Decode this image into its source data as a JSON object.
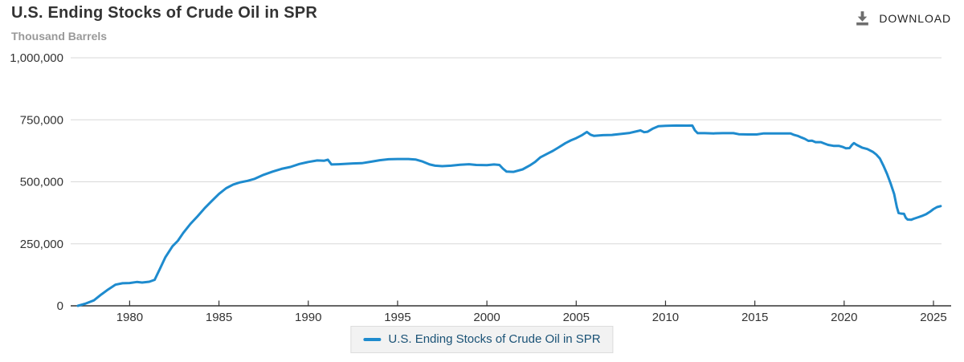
{
  "header": {
    "title": "U.S. Ending Stocks of Crude Oil in SPR",
    "subtitle": "Thousand Barrels",
    "download_label": "DOWNLOAD"
  },
  "legend": {
    "label": "U.S. Ending Stocks of Crude Oil in SPR"
  },
  "colors": {
    "series": "#1e8bce",
    "legend_text": "#1a5276",
    "legend_bg": "#f2f2f2",
    "legend_border": "#dddddd",
    "grid": "#d8d8d8",
    "axis": "#333333",
    "tick_label": "#333333",
    "title": "#333333",
    "subtitle": "#999999",
    "download_icon": "#6e6e6e"
  },
  "chart_data": {
    "type": "line",
    "title": "U.S. Ending Stocks of Crude Oil in SPR",
    "xlabel": "",
    "ylabel": "Thousand Barrels",
    "x_range": [
      1976.7,
      2025.45
    ],
    "y_range": [
      0,
      1000000
    ],
    "x_ticks": [
      1980,
      1985,
      1990,
      1995,
      2000,
      2005,
      2010,
      2015,
      2020,
      2025
    ],
    "y_ticks": [
      {
        "value": 0,
        "label": "0"
      },
      {
        "value": 250000,
        "label": "250,000"
      },
      {
        "value": 500000,
        "label": "500,000"
      },
      {
        "value": 750000,
        "label": "750,000"
      },
      {
        "value": 1000000,
        "label": "1,000,000"
      }
    ],
    "grid": "horizontal",
    "legend_position": "bottom",
    "series": [
      {
        "name": "U.S. Ending Stocks of Crude Oil in SPR",
        "color": "#1e8bce",
        "points": [
          [
            1977.1,
            0
          ],
          [
            1977.5,
            8000
          ],
          [
            1978.0,
            22000
          ],
          [
            1978.4,
            45000
          ],
          [
            1978.8,
            66000
          ],
          [
            1979.2,
            85000
          ],
          [
            1979.6,
            91000
          ],
          [
            1980.0,
            92000
          ],
          [
            1980.4,
            96000
          ],
          [
            1980.7,
            94000
          ],
          [
            1981.1,
            97000
          ],
          [
            1981.4,
            105000
          ],
          [
            1981.7,
            150000
          ],
          [
            1982.0,
            196000
          ],
          [
            1982.4,
            240000
          ],
          [
            1982.7,
            262000
          ],
          [
            1983.0,
            294000
          ],
          [
            1983.4,
            330000
          ],
          [
            1983.8,
            361000
          ],
          [
            1984.2,
            394000
          ],
          [
            1984.6,
            423000
          ],
          [
            1985.0,
            451000
          ],
          [
            1985.4,
            474000
          ],
          [
            1985.8,
            489000
          ],
          [
            1986.2,
            498000
          ],
          [
            1986.6,
            504000
          ],
          [
            1987.0,
            512000
          ],
          [
            1987.5,
            528000
          ],
          [
            1988.0,
            541000
          ],
          [
            1988.5,
            552000
          ],
          [
            1989.0,
            560000
          ],
          [
            1989.5,
            572000
          ],
          [
            1990.0,
            580000
          ],
          [
            1990.5,
            586000
          ],
          [
            1990.9,
            585000
          ],
          [
            1991.1,
            589000
          ],
          [
            1991.3,
            570000
          ],
          [
            1991.7,
            571000
          ],
          [
            1992.0,
            572000
          ],
          [
            1992.5,
            574000
          ],
          [
            1993.0,
            575000
          ],
          [
            1993.5,
            581000
          ],
          [
            1994.0,
            587000
          ],
          [
            1994.5,
            591000
          ],
          [
            1995.0,
            592000
          ],
          [
            1995.6,
            592000
          ],
          [
            1996.0,
            590000
          ],
          [
            1996.4,
            582000
          ],
          [
            1996.8,
            570000
          ],
          [
            1997.1,
            565000
          ],
          [
            1997.5,
            563000
          ],
          [
            1998.0,
            565000
          ],
          [
            1998.5,
            569000
          ],
          [
            1999.0,
            571000
          ],
          [
            1999.4,
            568000
          ],
          [
            2000.0,
            567000
          ],
          [
            2000.4,
            570000
          ],
          [
            2000.7,
            568000
          ],
          [
            2000.9,
            553000
          ],
          [
            2001.1,
            541000
          ],
          [
            2001.5,
            540000
          ],
          [
            2002.0,
            550000
          ],
          [
            2002.4,
            566000
          ],
          [
            2002.7,
            580000
          ],
          [
            2003.0,
            599000
          ],
          [
            2003.4,
            614000
          ],
          [
            2003.7,
            625000
          ],
          [
            2004.0,
            638000
          ],
          [
            2004.4,
            656000
          ],
          [
            2004.7,
            667000
          ],
          [
            2005.0,
            676000
          ],
          [
            2005.3,
            687000
          ],
          [
            2005.6,
            701000
          ],
          [
            2005.8,
            690000
          ],
          [
            2006.0,
            685000
          ],
          [
            2006.5,
            688000
          ],
          [
            2007.0,
            689000
          ],
          [
            2007.5,
            693000
          ],
          [
            2008.0,
            697000
          ],
          [
            2008.4,
            704000
          ],
          [
            2008.6,
            707000
          ],
          [
            2008.8,
            700000
          ],
          [
            2009.0,
            702000
          ],
          [
            2009.3,
            715000
          ],
          [
            2009.6,
            724000
          ],
          [
            2010.0,
            726000
          ],
          [
            2010.6,
            727000
          ],
          [
            2011.2,
            726500
          ],
          [
            2011.5,
            727000
          ],
          [
            2011.65,
            707000
          ],
          [
            2011.8,
            696000
          ],
          [
            2012.2,
            696000
          ],
          [
            2012.7,
            695000
          ],
          [
            2013.2,
            696000
          ],
          [
            2013.8,
            696000
          ],
          [
            2014.1,
            692000
          ],
          [
            2014.6,
            691000
          ],
          [
            2015.1,
            691000
          ],
          [
            2015.5,
            695000
          ],
          [
            2016.0,
            695000
          ],
          [
            2016.5,
            695000
          ],
          [
            2017.0,
            695000
          ],
          [
            2017.2,
            689000
          ],
          [
            2017.4,
            685000
          ],
          [
            2017.6,
            679000
          ],
          [
            2017.8,
            673000
          ],
          [
            2018.0,
            665000
          ],
          [
            2018.2,
            666000
          ],
          [
            2018.4,
            660000
          ],
          [
            2018.7,
            660000
          ],
          [
            2018.9,
            654000
          ],
          [
            2019.1,
            649000
          ],
          [
            2019.4,
            645000
          ],
          [
            2019.7,
            645000
          ],
          [
            2019.9,
            641000
          ],
          [
            2020.1,
            635000
          ],
          [
            2020.3,
            636000
          ],
          [
            2020.45,
            650000
          ],
          [
            2020.55,
            656000
          ],
          [
            2020.7,
            649000
          ],
          [
            2021.0,
            638000
          ],
          [
            2021.3,
            632000
          ],
          [
            2021.6,
            621000
          ],
          [
            2021.8,
            610000
          ],
          [
            2022.0,
            594000
          ],
          [
            2022.2,
            565000
          ],
          [
            2022.4,
            532000
          ],
          [
            2022.6,
            494000
          ],
          [
            2022.8,
            450000
          ],
          [
            2022.95,
            398000
          ],
          [
            2023.05,
            374000
          ],
          [
            2023.2,
            372000
          ],
          [
            2023.35,
            371000
          ],
          [
            2023.45,
            355000
          ],
          [
            2023.55,
            348000
          ],
          [
            2023.75,
            347000
          ],
          [
            2023.9,
            351000
          ],
          [
            2024.1,
            356000
          ],
          [
            2024.35,
            362000
          ],
          [
            2024.6,
            370000
          ],
          [
            2024.8,
            379000
          ],
          [
            2025.0,
            390000
          ],
          [
            2025.2,
            398000
          ],
          [
            2025.4,
            402000
          ]
        ]
      }
    ]
  }
}
